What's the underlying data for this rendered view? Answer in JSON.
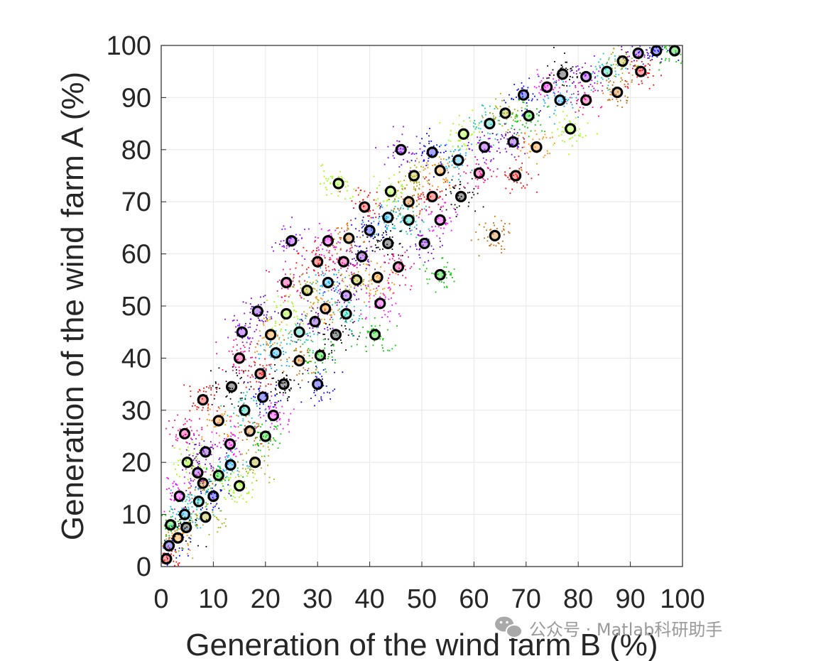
{
  "chart_data": {
    "type": "scatter",
    "xlabel": "Generation of the wind farm B (%)",
    "ylabel": "Generation of the wind farm A (%)",
    "xlim": [
      0,
      100
    ],
    "ylim": [
      0,
      100
    ],
    "xticks": [
      "0",
      "10",
      "20",
      "30",
      "40",
      "50",
      "60",
      "70",
      "80",
      "90",
      "100"
    ],
    "yticks": [
      "0",
      "10",
      "20",
      "30",
      "40",
      "50",
      "60",
      "70",
      "80",
      "90",
      "100"
    ],
    "grid": true,
    "legend": "none",
    "cluster_colors": [
      "#ff0000",
      "#0000ff",
      "#00cc00",
      "#ff8800",
      "#ff00ff",
      "#00aaff",
      "#000000",
      "#99ff00",
      "#ff0088",
      "#8800ff",
      "#00ccaa",
      "#cc6600",
      "#aaaa00",
      "#6600cc"
    ],
    "cluster_dot_count": 40,
    "cluster_spread": 2.6,
    "centroids": [
      [
        1,
        1.5
      ],
      [
        1.5,
        4
      ],
      [
        1.8,
        8
      ],
      [
        3.2,
        5.5
      ],
      [
        3.5,
        13.5
      ],
      [
        4.5,
        10
      ],
      [
        4.8,
        7.5
      ],
      [
        5,
        20
      ],
      [
        4.5,
        25.5
      ],
      [
        7,
        18
      ],
      [
        7.2,
        12.5
      ],
      [
        8,
        16
      ],
      [
        8.5,
        9.5
      ],
      [
        8.5,
        22
      ],
      [
        8,
        32
      ],
      [
        10,
        13.5
      ],
      [
        11,
        17.5
      ],
      [
        11,
        28
      ],
      [
        13.2,
        23.5
      ],
      [
        13.3,
        19.5
      ],
      [
        13.5,
        34.5
      ],
      [
        15,
        15.5
      ],
      [
        15,
        40
      ],
      [
        15.5,
        45
      ],
      [
        16,
        30
      ],
      [
        17,
        26
      ],
      [
        18,
        20
      ],
      [
        18.5,
        49
      ],
      [
        19,
        37
      ],
      [
        19.5,
        32.5
      ],
      [
        20,
        25
      ],
      [
        21,
        44.5
      ],
      [
        21.5,
        29
      ],
      [
        22,
        41
      ],
      [
        23.5,
        35
      ],
      [
        24,
        48.5
      ],
      [
        24,
        54.5
      ],
      [
        25,
        62.5
      ],
      [
        26.5,
        45
      ],
      [
        26.5,
        39.5
      ],
      [
        28,
        53
      ],
      [
        29.5,
        47
      ],
      [
        30,
        58.5
      ],
      [
        30,
        35
      ],
      [
        30.5,
        40.5
      ],
      [
        31.5,
        49.5
      ],
      [
        32,
        62.5
      ],
      [
        32,
        54.5
      ],
      [
        33.5,
        44.5
      ],
      [
        34,
        73.5
      ],
      [
        35,
        58.5
      ],
      [
        35.5,
        52
      ],
      [
        35.5,
        48.5
      ],
      [
        36,
        63
      ],
      [
        37.5,
        55
      ],
      [
        38.5,
        59.5
      ],
      [
        39,
        69
      ],
      [
        40,
        64.5
      ],
      [
        41,
        44.5
      ],
      [
        41.5,
        55.5
      ],
      [
        42,
        50.5
      ],
      [
        43.5,
        67
      ],
      [
        43.5,
        62
      ],
      [
        44,
        72
      ],
      [
        45.5,
        57.5
      ],
      [
        46,
        80
      ],
      [
        47.5,
        66.5
      ],
      [
        47.5,
        70
      ],
      [
        48.5,
        75
      ],
      [
        50.5,
        62
      ],
      [
        52,
        71
      ],
      [
        52,
        79.5
      ],
      [
        53.5,
        56
      ],
      [
        53.5,
        76
      ],
      [
        53.5,
        66.5
      ],
      [
        57,
        78
      ],
      [
        57.5,
        71
      ],
      [
        58,
        83
      ],
      [
        61,
        75.5
      ],
      [
        62,
        80.5
      ],
      [
        63,
        85
      ],
      [
        64,
        63.5
      ],
      [
        66,
        87
      ],
      [
        67.5,
        81.5
      ],
      [
        68,
        75
      ],
      [
        69.5,
        90.5
      ],
      [
        70.5,
        86.5
      ],
      [
        72,
        80.5
      ],
      [
        74,
        92
      ],
      [
        76.5,
        89.5
      ],
      [
        77,
        94.5
      ],
      [
        78.5,
        84
      ],
      [
        81.5,
        89.5
      ],
      [
        81.5,
        94
      ],
      [
        85.5,
        95
      ],
      [
        87.5,
        91
      ],
      [
        88.5,
        97
      ],
      [
        91.5,
        98.5
      ],
      [
        92,
        95
      ],
      [
        95,
        99
      ],
      [
        98.5,
        99
      ]
    ]
  },
  "watermark": {
    "icon": "wechat-icon",
    "text": "公众号 · Matlab科研助手"
  }
}
